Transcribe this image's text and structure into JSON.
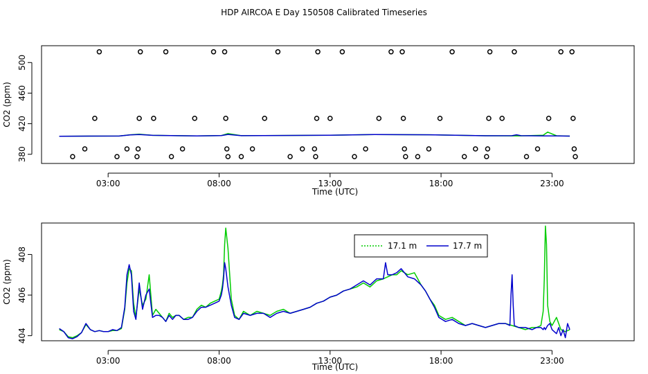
{
  "title": "HDP AIRCOA E  Day 150508  Calibrated Timeseries",
  "colors": {
    "series_17_1": "#00cc00",
    "series_17_7": "#0000cc",
    "points": "#000000"
  },
  "chart_data": [
    {
      "type": "scatter",
      "title": "",
      "xlabel": "Time (UTC)",
      "ylabel": "CO2 (ppm)",
      "xlim": [
        0.0,
        26.7
      ],
      "ylim": [
        368,
        522
      ],
      "xticks": [
        3,
        8,
        13,
        18,
        23
      ],
      "xtick_labels": [
        "03:00",
        "08:00",
        "13:00",
        "18:00",
        "23:00"
      ],
      "yticks": [
        380,
        420,
        460,
        500
      ],
      "ytick_labels": [
        "380",
        "420",
        "460",
        "500"
      ],
      "grid": false,
      "legend": "none",
      "series": [
        {
          "marker": "circle",
          "points": [
            [
              1.4,
              377
            ],
            [
              1.95,
              387
            ],
            [
              2.4,
              427
            ],
            [
              2.6,
              514
            ],
            [
              3.4,
              377
            ],
            [
              3.85,
              387
            ],
            [
              4.3,
              377
            ],
            [
              4.35,
              387
            ],
            [
              4.4,
              427
            ],
            [
              4.45,
              514
            ],
            [
              5.05,
              427
            ],
            [
              5.6,
              514
            ],
            [
              5.85,
              377
            ],
            [
              6.35,
              387
            ],
            [
              6.9,
              427
            ],
            [
              7.75,
              514
            ],
            [
              8.25,
              514
            ],
            [
              8.3,
              427
            ],
            [
              8.35,
              387
            ],
            [
              8.4,
              377
            ],
            [
              9.0,
              377
            ],
            [
              9.5,
              387
            ],
            [
              10.05,
              427
            ],
            [
              10.65,
              514
            ],
            [
              11.2,
              377
            ],
            [
              11.75,
              387
            ],
            [
              12.3,
              387
            ],
            [
              12.35,
              377
            ],
            [
              12.4,
              427
            ],
            [
              12.45,
              514
            ],
            [
              13.0,
              427
            ],
            [
              13.55,
              514
            ],
            [
              14.1,
              377
            ],
            [
              14.6,
              387
            ],
            [
              15.2,
              427
            ],
            [
              15.75,
              514
            ],
            [
              16.25,
              514
            ],
            [
              16.3,
              427
            ],
            [
              16.35,
              387
            ],
            [
              16.4,
              377
            ],
            [
              16.95,
              377
            ],
            [
              17.45,
              387
            ],
            [
              17.95,
              427
            ],
            [
              18.5,
              514
            ],
            [
              19.05,
              377
            ],
            [
              19.55,
              387
            ],
            [
              20.05,
              377
            ],
            [
              20.1,
              387
            ],
            [
              20.15,
              427
            ],
            [
              20.2,
              514
            ],
            [
              20.75,
              427
            ],
            [
              21.3,
              514
            ],
            [
              21.85,
              377
            ],
            [
              22.35,
              387
            ],
            [
              22.85,
              427
            ],
            [
              23.4,
              514
            ],
            [
              23.9,
              514
            ],
            [
              23.95,
              427
            ],
            [
              24.0,
              387
            ],
            [
              24.05,
              377
            ]
          ]
        },
        {
          "name": "17.1 m",
          "line_x": [
            0.8,
            3.5,
            4.0,
            4.4,
            5.0,
            7.0,
            8.1,
            8.4,
            9.0,
            13.0,
            15.0,
            17.5,
            20.0,
            21.5,
            22.6,
            22.8,
            23.2,
            23.8
          ],
          "line_y": [
            403.6,
            403.9,
            405.5,
            406.2,
            404.8,
            404.0,
            404.5,
            407.0,
            404.3,
            405.0,
            405.9,
            405.5,
            404.2,
            404.0,
            405.0,
            409.0,
            404.2,
            403.8
          ]
        },
        {
          "name": "17.7 m",
          "line_x": [
            0.8,
            3.5,
            4.0,
            4.4,
            5.0,
            7.0,
            8.1,
            8.4,
            9.0,
            13.0,
            15.0,
            17.5,
            20.0,
            21.2,
            21.4,
            21.6,
            22.6,
            23.2,
            23.8
          ],
          "line_y": [
            403.6,
            403.9,
            405.3,
            405.8,
            404.8,
            404.0,
            404.5,
            406.0,
            404.3,
            405.0,
            405.9,
            405.5,
            404.2,
            404.3,
            405.5,
            404.3,
            404.0,
            404.0,
            403.8
          ]
        }
      ]
    },
    {
      "type": "line",
      "title": "",
      "xlabel": "Time (UTC)",
      "ylabel": "CO2 (ppm)",
      "xlim": [
        0.0,
        26.7
      ],
      "ylim": [
        403.75,
        409.55
      ],
      "xticks": [
        3,
        8,
        13,
        18,
        23
      ],
      "xtick_labels": [
        "03:00",
        "08:00",
        "13:00",
        "18:00",
        "23:00"
      ],
      "yticks": [
        404,
        406,
        408
      ],
      "ytick_labels": [
        "404",
        "406",
        "408"
      ],
      "grid": false,
      "legend": "top-right",
      "series": [
        {
          "name": "17.1 m",
          "x": [
            0.8,
            1.0,
            1.2,
            1.4,
            1.6,
            1.8,
            2.0,
            2.2,
            2.4,
            2.6,
            2.8,
            3.0,
            3.2,
            3.4,
            3.6,
            3.75,
            3.85,
            3.95,
            4.05,
            4.15,
            4.25,
            4.4,
            4.55,
            4.7,
            4.85,
            5.0,
            5.15,
            5.3,
            5.45,
            5.6,
            5.75,
            5.9,
            6.05,
            6.2,
            6.4,
            6.6,
            6.8,
            7.0,
            7.2,
            7.4,
            7.6,
            7.8,
            8.0,
            8.1,
            8.15,
            8.2,
            8.25,
            8.3,
            8.4,
            8.55,
            8.7,
            8.9,
            9.1,
            9.4,
            9.7,
            10.0,
            10.3,
            10.6,
            10.9,
            11.2,
            11.5,
            11.8,
            12.1,
            12.4,
            12.7,
            13.0,
            13.3,
            13.6,
            13.9,
            14.2,
            14.5,
            14.8,
            15.1,
            15.4,
            15.6,
            15.8,
            16.0,
            16.2,
            16.5,
            16.8,
            17.1,
            17.3,
            17.5,
            17.7,
            17.9,
            18.2,
            18.5,
            18.8,
            19.1,
            19.4,
            19.7,
            20.0,
            20.3,
            20.6,
            20.9,
            21.2,
            21.5,
            21.8,
            22.1,
            22.3,
            22.5,
            22.6,
            22.65,
            22.7,
            22.75,
            22.8,
            22.9,
            23.0,
            23.2,
            23.4,
            23.6,
            23.8
          ],
          "values": [
            404.3,
            404.2,
            403.95,
            403.9,
            404.0,
            404.15,
            404.55,
            404.3,
            404.2,
            404.25,
            404.2,
            404.2,
            404.25,
            404.25,
            404.35,
            405.3,
            406.6,
            407.3,
            407.2,
            405.6,
            404.9,
            406.3,
            405.5,
            405.8,
            407.0,
            405.0,
            405.3,
            405.1,
            404.9,
            404.7,
            405.1,
            404.9,
            405.0,
            405.0,
            404.8,
            404.9,
            404.9,
            405.3,
            405.5,
            405.4,
            405.6,
            405.7,
            405.8,
            406.2,
            406.5,
            407.0,
            408.5,
            409.3,
            408.3,
            405.8,
            405.0,
            404.8,
            405.2,
            405.0,
            405.2,
            405.1,
            405.0,
            405.2,
            405.3,
            405.1,
            405.2,
            405.3,
            405.4,
            405.6,
            405.7,
            405.9,
            406.0,
            406.2,
            406.3,
            406.4,
            406.6,
            406.4,
            406.7,
            406.8,
            406.9,
            407.0,
            407.0,
            407.2,
            407.0,
            407.1,
            406.5,
            406.2,
            405.8,
            405.5,
            405.0,
            404.8,
            404.9,
            404.7,
            404.5,
            404.6,
            404.5,
            404.4,
            404.5,
            404.6,
            404.6,
            404.5,
            404.4,
            404.3,
            404.4,
            404.4,
            404.5,
            405.2,
            406.8,
            409.4,
            408.5,
            405.5,
            404.7,
            404.5,
            404.9,
            404.3,
            404.2,
            404.3
          ]
        },
        {
          "name": "17.7 m",
          "x": [
            0.8,
            1.0,
            1.2,
            1.4,
            1.6,
            1.8,
            2.0,
            2.2,
            2.4,
            2.6,
            2.8,
            3.0,
            3.2,
            3.4,
            3.6,
            3.75,
            3.85,
            3.95,
            4.05,
            4.15,
            4.25,
            4.4,
            4.55,
            4.7,
            4.85,
            5.0,
            5.15,
            5.3,
            5.45,
            5.6,
            5.75,
            5.9,
            6.05,
            6.2,
            6.4,
            6.6,
            6.8,
            7.0,
            7.2,
            7.4,
            7.6,
            7.8,
            8.0,
            8.1,
            8.15,
            8.2,
            8.25,
            8.3,
            8.4,
            8.55,
            8.7,
            8.9,
            9.1,
            9.4,
            9.7,
            10.0,
            10.3,
            10.6,
            10.9,
            11.2,
            11.5,
            11.8,
            12.1,
            12.4,
            12.7,
            13.0,
            13.3,
            13.6,
            13.9,
            14.2,
            14.5,
            14.8,
            15.1,
            15.4,
            15.5,
            15.6,
            15.8,
            16.0,
            16.2,
            16.5,
            16.8,
            17.1,
            17.3,
            17.5,
            17.7,
            17.9,
            18.2,
            18.5,
            18.8,
            19.1,
            19.4,
            19.7,
            20.0,
            20.3,
            20.6,
            20.9,
            21.1,
            21.15,
            21.2,
            21.25,
            21.3,
            21.5,
            21.8,
            22.1,
            22.3,
            22.5,
            22.6,
            22.65,
            22.7,
            22.8,
            22.9,
            23.0,
            23.2,
            23.3,
            23.4,
            23.5,
            23.6,
            23.7,
            23.8
          ],
          "values": [
            404.35,
            404.2,
            403.9,
            403.85,
            403.95,
            404.15,
            404.6,
            404.3,
            404.2,
            404.25,
            404.2,
            404.2,
            404.3,
            404.25,
            404.4,
            405.4,
            407.0,
            407.5,
            407.0,
            405.2,
            404.8,
            406.6,
            405.3,
            406.0,
            406.3,
            404.9,
            405.0,
            405.0,
            404.9,
            404.7,
            405.0,
            404.8,
            405.0,
            405.0,
            404.8,
            404.8,
            404.9,
            405.2,
            405.4,
            405.4,
            405.5,
            405.6,
            405.7,
            406.0,
            406.3,
            406.8,
            407.6,
            407.3,
            406.4,
            405.5,
            404.9,
            404.8,
            405.1,
            405.0,
            405.1,
            405.1,
            404.9,
            405.1,
            405.2,
            405.1,
            405.2,
            405.3,
            405.4,
            405.6,
            405.7,
            405.9,
            406.0,
            406.2,
            406.3,
            406.5,
            406.7,
            406.5,
            406.8,
            406.8,
            407.6,
            407.0,
            407.0,
            407.1,
            407.3,
            406.9,
            406.8,
            406.5,
            406.2,
            405.8,
            405.4,
            404.9,
            404.7,
            404.8,
            404.6,
            404.5,
            404.6,
            404.5,
            404.4,
            404.5,
            404.6,
            404.6,
            404.5,
            406.0,
            407.0,
            405.5,
            404.5,
            404.4,
            404.4,
            404.3,
            404.4,
            404.4,
            404.3,
            404.4,
            404.3,
            404.5,
            404.6,
            404.3,
            404.1,
            404.4,
            404.0,
            404.3,
            403.9,
            404.6,
            404.3
          ]
        }
      ]
    }
  ]
}
